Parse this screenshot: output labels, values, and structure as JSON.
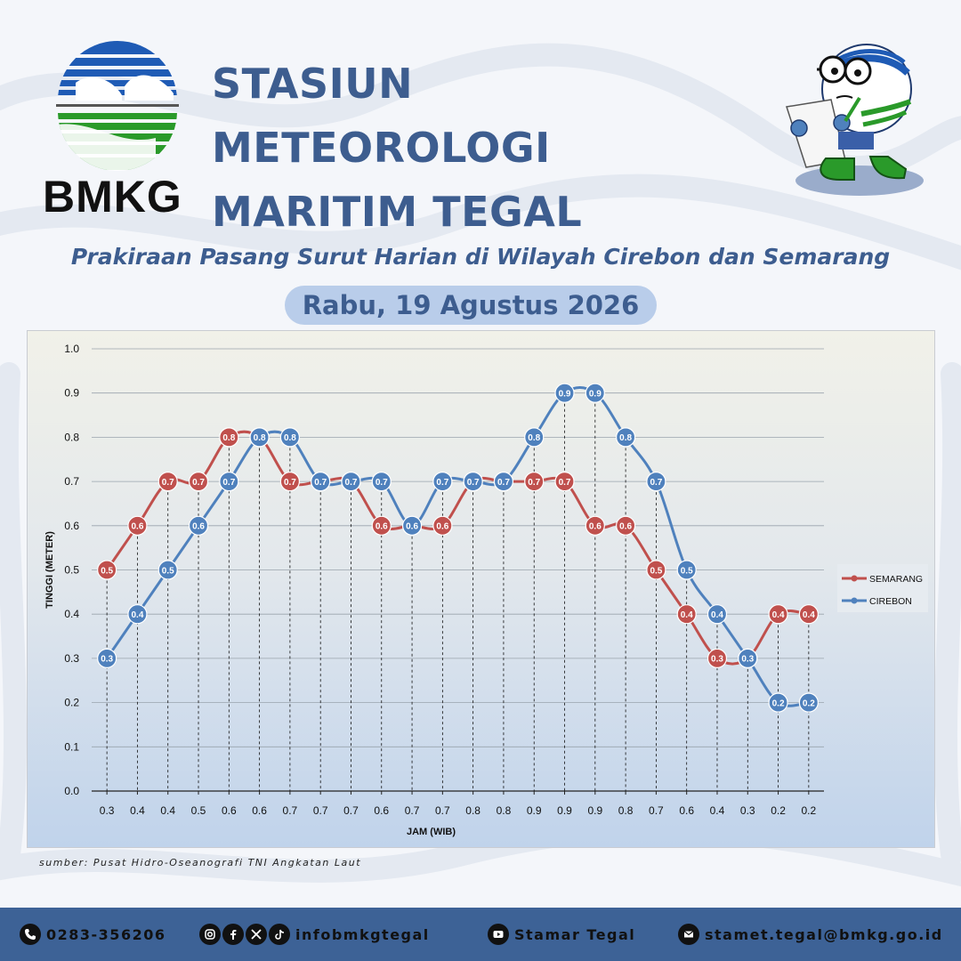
{
  "header": {
    "logo_text": "BMKG",
    "title_line1": "STASIUN METEOROLOGI",
    "title_line2": "MARITIM TEGAL",
    "subtitle": "Prakiraan Pasang Surut Harian di Wilayah Cirebon dan Semarang",
    "date": "Rabu, 19 Agustus 2026"
  },
  "colors": {
    "title": "#3d5d8f",
    "semarang": "#c0504d",
    "cirebon": "#4f81bd",
    "footer": "#3d6296",
    "pill": "#b9cdea"
  },
  "chart_data": {
    "type": "line",
    "xlabel": "JAM (WIB)",
    "ylabel": "TINGGI (METER)",
    "ylim": [
      0,
      1.0
    ],
    "ytick_step": 0.1,
    "grid": true,
    "legend_position": "right",
    "categories": [
      "0.3",
      "0.4",
      "0.4",
      "0.5",
      "0.6",
      "0.6",
      "0.7",
      "0.7",
      "0.7",
      "0.6",
      "0.7",
      "0.7",
      "0.8",
      "0.8",
      "0.9",
      "0.9",
      "0.9",
      "0.8",
      "0.7",
      "0.6",
      "0.4",
      "0.3",
      "0.2",
      "0.2"
    ],
    "series": [
      {
        "name": "SEMARANG",
        "color": "#c0504d",
        "values": [
          0.5,
          0.6,
          0.7,
          0.7,
          0.8,
          0.8,
          0.7,
          0.7,
          0.7,
          0.6,
          0.6,
          0.6,
          0.7,
          0.7,
          0.7,
          0.7,
          0.6,
          0.6,
          0.5,
          0.4,
          0.3,
          0.3,
          0.4,
          0.4
        ]
      },
      {
        "name": "CIREBON",
        "color": "#4f81bd",
        "values": [
          0.3,
          0.4,
          0.5,
          0.6,
          0.7,
          0.8,
          0.8,
          0.7,
          0.7,
          0.7,
          0.6,
          0.7,
          0.7,
          0.7,
          0.8,
          0.9,
          0.9,
          0.8,
          0.7,
          0.5,
          0.4,
          0.3,
          0.2,
          0.2
        ]
      }
    ]
  },
  "source": "sumber: Pusat Hidro-Oseanografi TNI Angkatan Laut",
  "footer": {
    "phone": "0283-356206",
    "social": "infobmkgtegal",
    "youtube": "Stamar Tegal",
    "email": "stamet.tegal@bmkg.go.id"
  }
}
